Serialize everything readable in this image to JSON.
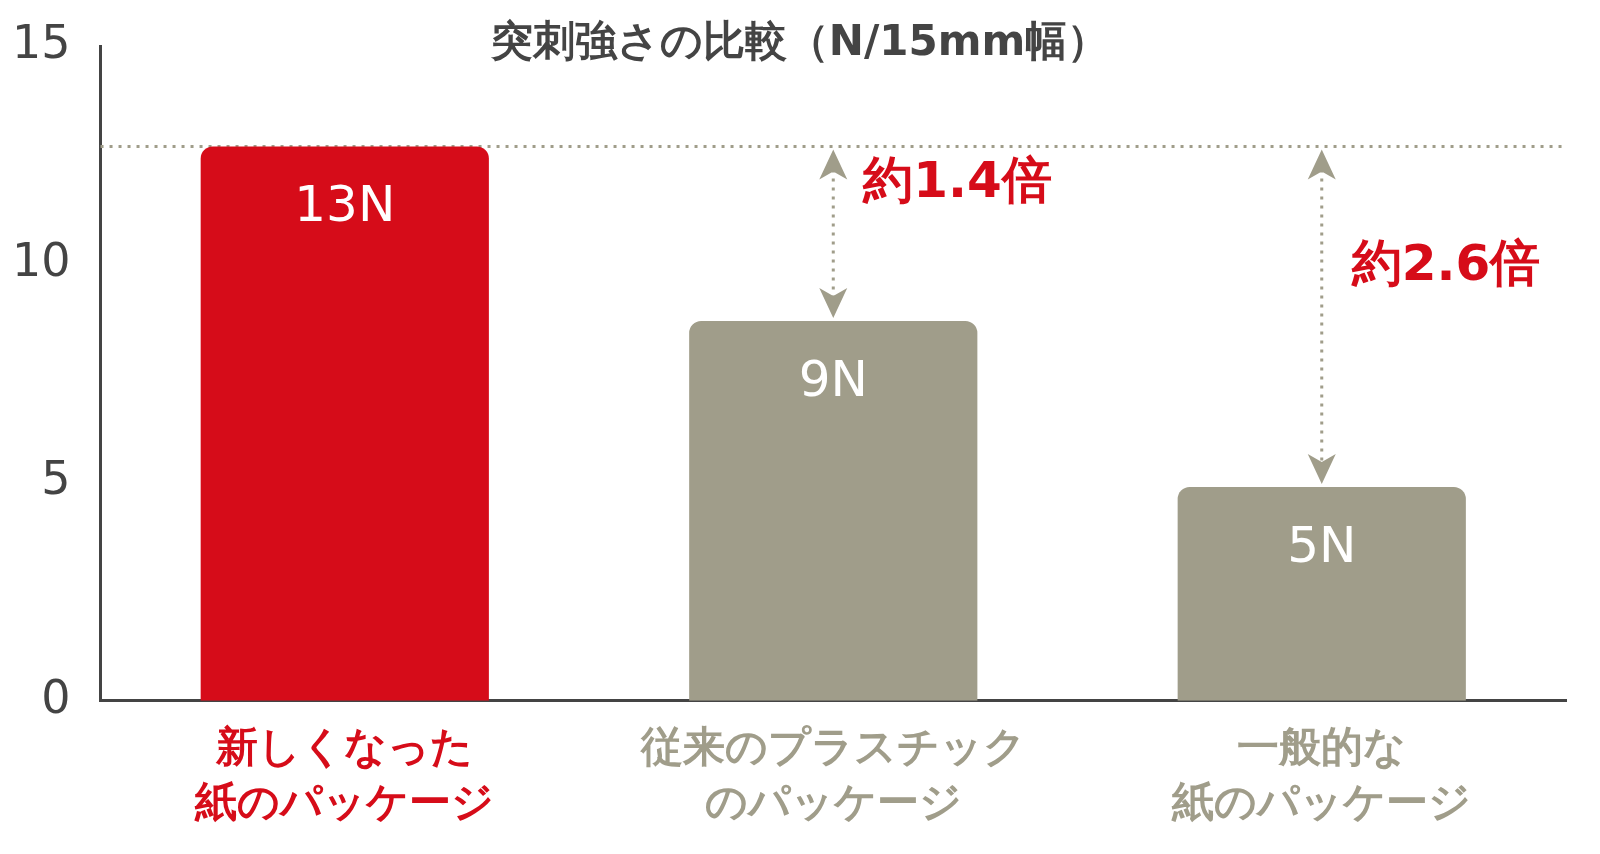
{
  "chart_data": {
    "type": "bar",
    "title": "突刺強さの比較（N/15mm幅）",
    "categories": [
      "新しくなった紙のパッケージ",
      "従来のプラスチックのパッケージ",
      "一般的な紙のパッケージ"
    ],
    "values": [
      12.7,
      8.7,
      4.9
    ],
    "colors": [
      "#d60c19",
      "#a09d8a",
      "#a09d8a"
    ],
    "value_labels": [
      "13N",
      "9N",
      "5N"
    ],
    "ylim": [
      0,
      15
    ],
    "yticks": [
      0,
      5,
      10,
      15
    ],
    "grid": false,
    "legend": false,
    "ref_lines": [
      {
        "axis": "y",
        "value": 12.7,
        "color": "#a09d8a",
        "line_style": "dotted"
      }
    ],
    "annotations": [
      "約1.4倍",
      "約2.6倍"
    ]
  }
}
